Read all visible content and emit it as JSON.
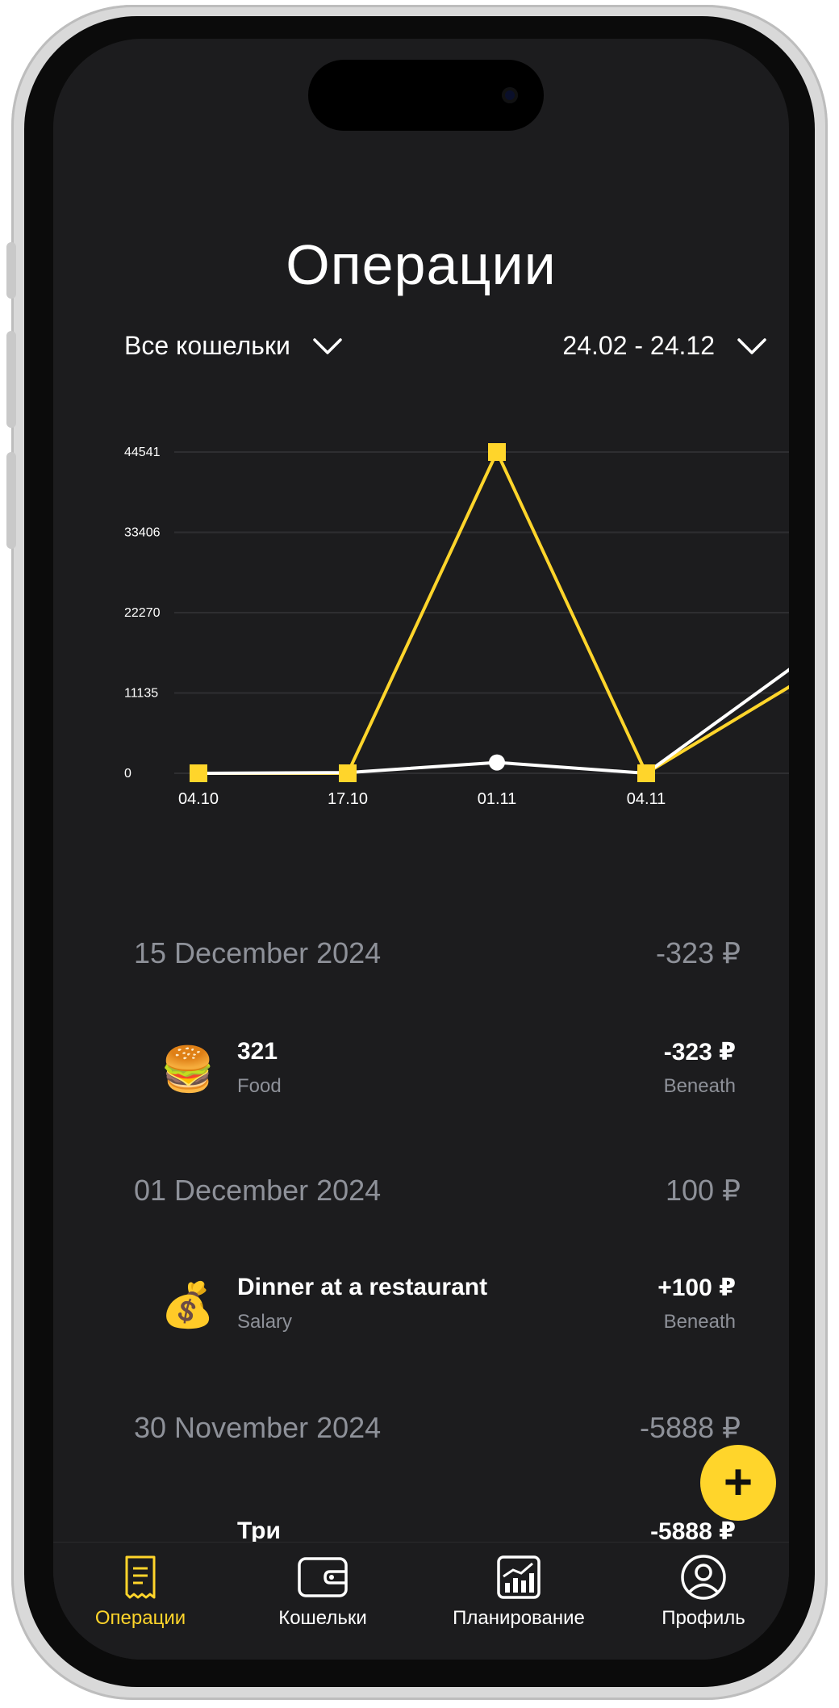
{
  "title": "Операции",
  "filters": {
    "wallet": "Все кошельки",
    "date_range": "24.02 - 24.12"
  },
  "chart_data": {
    "type": "line",
    "x": [
      "04.10",
      "17.10",
      "01.11",
      "04.11"
    ],
    "y_ticks": [
      0,
      11135,
      22270,
      33406,
      44541
    ],
    "ylim": [
      0,
      44541
    ],
    "grid": true,
    "series": [
      {
        "color": "#ffd52b",
        "marker": "square",
        "values": [
          0,
          0,
          44541,
          0
        ]
      },
      {
        "color": "#ffffff",
        "marker": "circle",
        "values": [
          0,
          100,
          1500,
          0
        ]
      }
    ],
    "labels": {
      "y_ticks": [
        "44541",
        "33406",
        "22270",
        "11135",
        "0"
      ]
    }
  },
  "sections": [
    {
      "date": "15 December 2024",
      "total": "-323 ₽",
      "items": [
        {
          "icon": "hamburger-icon",
          "emoji": "🍔",
          "name": "321",
          "category": "Food",
          "amount": "-323 ₽",
          "wallet": "Beneath"
        }
      ]
    },
    {
      "date": "01 December 2024",
      "total": "100 ₽",
      "items": [
        {
          "icon": "money-bag-icon",
          "emoji": "💰",
          "name": "Dinner at a restaurant",
          "category": "Salary",
          "amount": "+100 ₽",
          "wallet": "Beneath"
        }
      ]
    },
    {
      "date": "30 November 2024",
      "total": "-5888 ₽",
      "items": [
        {
          "icon": "item-icon",
          "emoji": "",
          "name": "Три",
          "category": "",
          "amount": "-5888 ₽",
          "wallet": ""
        }
      ]
    }
  ],
  "fab_label": "+",
  "tabs": [
    {
      "label": "Операции",
      "icon": "receipt-icon",
      "active": true
    },
    {
      "label": "Кошельки",
      "icon": "wallet-icon",
      "active": false
    },
    {
      "label": "Планирование",
      "icon": "chart-icon",
      "active": false
    },
    {
      "label": "Профиль",
      "icon": "profile-icon",
      "active": false
    }
  ],
  "colors": {
    "accent": "#ffd52b",
    "background": "#1c1c1e",
    "muted": "#8e9199"
  }
}
